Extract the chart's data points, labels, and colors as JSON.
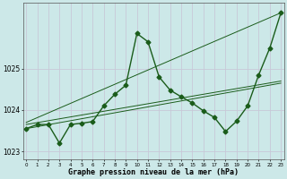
{
  "background_color": "#cce8e8",
  "grid_color": "#c8c8d8",
  "line_color": "#1a5c1a",
  "title": "Graphe pression niveau de la mer (hPa)",
  "x_labels": [
    "0",
    "1",
    "2",
    "3",
    "4",
    "5",
    "6",
    "7",
    "8",
    "9",
    "10",
    "11",
    "12",
    "13",
    "14",
    "15",
    "16",
    "17",
    "18",
    "19",
    "20",
    "21",
    "22",
    "23"
  ],
  "yticks": [
    1023,
    1024,
    1025
  ],
  "series1": {
    "x": [
      0,
      23
    ],
    "y": [
      1023.55,
      1024.65
    ]
  },
  "series2": {
    "x": [
      0,
      23
    ],
    "y": [
      1023.65,
      1024.7
    ]
  },
  "series3": {
    "x": [
      0,
      23
    ],
    "y": [
      1023.7,
      1026.35
    ]
  },
  "series_main": {
    "x": [
      0,
      1,
      2,
      3,
      4,
      5,
      6,
      7,
      8,
      9,
      10,
      11,
      12,
      13,
      14,
      15,
      16,
      17,
      18,
      19,
      20,
      21,
      22,
      23
    ],
    "y": [
      1023.55,
      1023.65,
      1023.65,
      1023.2,
      1023.65,
      1023.68,
      1023.72,
      1024.1,
      1024.38,
      1024.6,
      1025.85,
      1025.65,
      1024.8,
      1024.48,
      1024.32,
      1024.17,
      1023.98,
      1023.82,
      1023.48,
      1023.73,
      1024.1,
      1024.85,
      1025.5,
      1026.35
    ]
  },
  "ylim": [
    1022.8,
    1026.6
  ],
  "xlim": [
    -0.3,
    23.3
  ],
  "figsize": [
    3.2,
    2.0
  ],
  "dpi": 100
}
